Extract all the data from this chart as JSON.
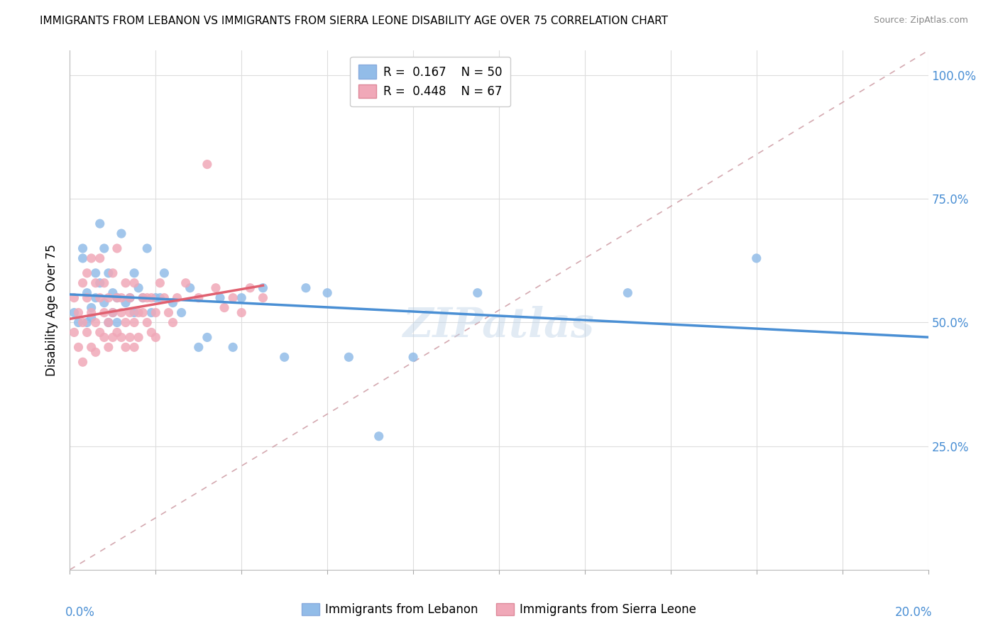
{
  "title": "IMMIGRANTS FROM LEBANON VS IMMIGRANTS FROM SIERRA LEONE DISABILITY AGE OVER 75 CORRELATION CHART",
  "source": "Source: ZipAtlas.com",
  "ylabel": "Disability Age Over 75",
  "xlim": [
    0.0,
    0.2
  ],
  "ylim": [
    0.0,
    1.05
  ],
  "ytick_vals": [
    0.25,
    0.5,
    0.75,
    1.0
  ],
  "ytick_labels": [
    "25.0%",
    "50.0%",
    "75.0%",
    "100.0%"
  ],
  "lebanon_color": "#92bce8",
  "lebanon_line_color": "#4a8fd4",
  "sierra_leone_color": "#f0a8b8",
  "sierra_leone_line_color": "#e06070",
  "ref_line_color": "#d0a0a8",
  "lebanon_R": 0.167,
  "lebanon_N": 50,
  "sierra_leone_R": 0.448,
  "sierra_leone_N": 67,
  "watermark": "ZIPatlas",
  "legend_label_lebanon": "Immigrants from Lebanon",
  "legend_label_sierra_leone": "Immigrants from Sierra Leone",
  "lebanon_x": [
    0.001,
    0.002,
    0.003,
    0.003,
    0.004,
    0.004,
    0.005,
    0.005,
    0.006,
    0.006,
    0.007,
    0.007,
    0.008,
    0.008,
    0.009,
    0.009,
    0.01,
    0.01,
    0.011,
    0.011,
    0.012,
    0.013,
    0.014,
    0.015,
    0.015,
    0.016,
    0.017,
    0.018,
    0.019,
    0.02,
    0.021,
    0.022,
    0.024,
    0.026,
    0.028,
    0.03,
    0.032,
    0.035,
    0.038,
    0.04,
    0.045,
    0.05,
    0.055,
    0.06,
    0.065,
    0.072,
    0.08,
    0.095,
    0.13,
    0.16
  ],
  "lebanon_y": [
    0.52,
    0.5,
    0.65,
    0.63,
    0.56,
    0.5,
    0.53,
    0.51,
    0.6,
    0.55,
    0.7,
    0.58,
    0.65,
    0.54,
    0.6,
    0.5,
    0.56,
    0.52,
    0.55,
    0.5,
    0.68,
    0.54,
    0.55,
    0.6,
    0.52,
    0.57,
    0.55,
    0.65,
    0.52,
    0.55,
    0.55,
    0.6,
    0.54,
    0.52,
    0.57,
    0.45,
    0.47,
    0.55,
    0.45,
    0.55,
    0.57,
    0.43,
    0.57,
    0.56,
    0.43,
    0.27,
    0.43,
    0.56,
    0.56,
    0.63
  ],
  "sierra_leone_x": [
    0.001,
    0.001,
    0.002,
    0.002,
    0.003,
    0.003,
    0.003,
    0.004,
    0.004,
    0.004,
    0.005,
    0.005,
    0.005,
    0.006,
    0.006,
    0.006,
    0.007,
    0.007,
    0.007,
    0.008,
    0.008,
    0.008,
    0.009,
    0.009,
    0.009,
    0.01,
    0.01,
    0.01,
    0.011,
    0.011,
    0.011,
    0.012,
    0.012,
    0.012,
    0.013,
    0.013,
    0.013,
    0.014,
    0.014,
    0.014,
    0.015,
    0.015,
    0.015,
    0.016,
    0.016,
    0.017,
    0.017,
    0.018,
    0.018,
    0.019,
    0.019,
    0.02,
    0.02,
    0.021,
    0.022,
    0.023,
    0.024,
    0.025,
    0.027,
    0.03,
    0.032,
    0.034,
    0.036,
    0.038,
    0.04,
    0.042,
    0.045
  ],
  "sierra_leone_y": [
    0.55,
    0.48,
    0.52,
    0.45,
    0.58,
    0.5,
    0.42,
    0.55,
    0.48,
    0.6,
    0.45,
    0.63,
    0.52,
    0.58,
    0.5,
    0.44,
    0.55,
    0.48,
    0.63,
    0.52,
    0.47,
    0.58,
    0.55,
    0.5,
    0.45,
    0.52,
    0.6,
    0.47,
    0.55,
    0.48,
    0.65,
    0.52,
    0.47,
    0.55,
    0.5,
    0.45,
    0.58,
    0.52,
    0.47,
    0.55,
    0.5,
    0.45,
    0.58,
    0.52,
    0.47,
    0.55,
    0.52,
    0.5,
    0.55,
    0.48,
    0.55,
    0.52,
    0.47,
    0.58,
    0.55,
    0.52,
    0.5,
    0.55,
    0.58,
    0.55,
    0.82,
    0.57,
    0.53,
    0.55,
    0.52,
    0.57,
    0.55
  ]
}
